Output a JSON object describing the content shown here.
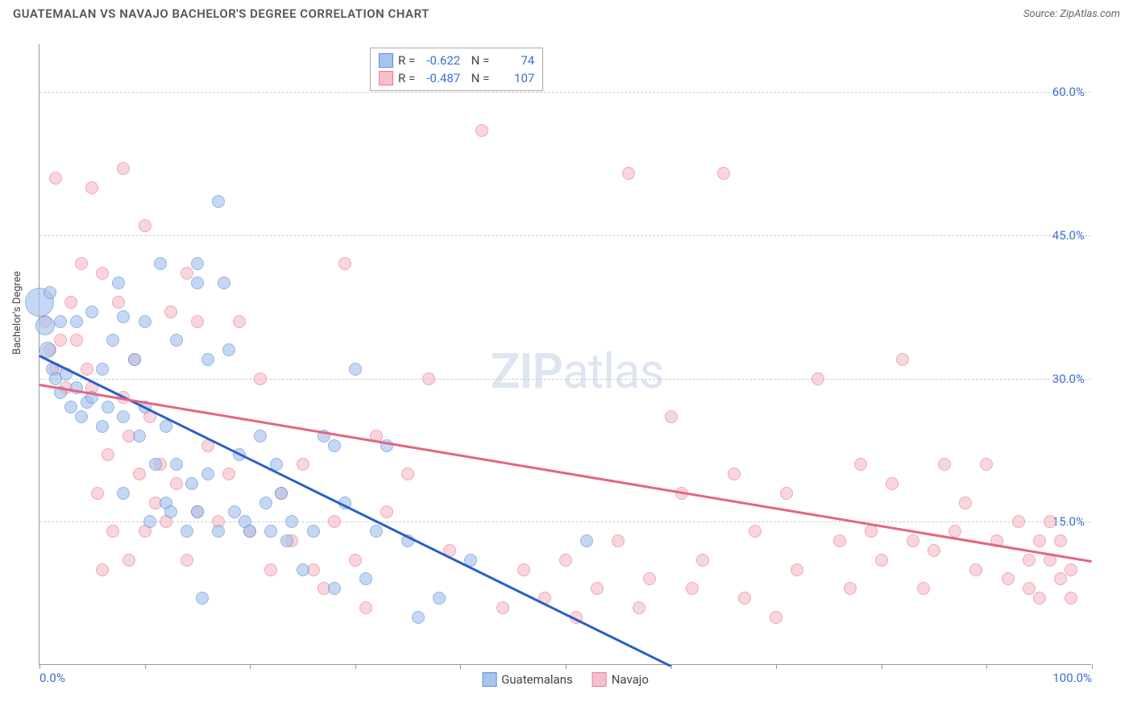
{
  "header": {
    "title": "GUATEMALAN VS NAVAJO BACHELOR'S DEGREE CORRELATION CHART",
    "source_label": "Source: ZipAtlas.com"
  },
  "chart": {
    "type": "scatter",
    "ylabel": "Bachelor's Degree",
    "watermark": "ZIPatlas",
    "xlim": [
      0,
      100
    ],
    "ylim": [
      0,
      65
    ],
    "xtick_positions": [
      0,
      10,
      20,
      30,
      40,
      50,
      60,
      70,
      80,
      90,
      100
    ],
    "xtick_labels_shown": {
      "0": "0.0%",
      "100": "100.0%"
    },
    "ytick_positions": [
      15,
      30,
      45,
      60
    ],
    "ytick_labels": {
      "15": "15.0%",
      "30": "30.0%",
      "45": "45.0%",
      "60": "60.0%"
    },
    "grid_color": "#cccccc",
    "background_color": "#ffffff",
    "tick_label_color": "#3b6fd4",
    "tick_label_fontsize": 15,
    "axis_label_fontsize": 13,
    "point_radius": 8,
    "point_opacity_fill": 0.35,
    "point_opacity_stroke": 0.9,
    "series": [
      {
        "name": "Guatemalans",
        "color_fill": "#a7c4ed",
        "color_stroke": "#5b8fd6",
        "stats": {
          "R": "-0.622",
          "N": "74"
        },
        "trend": {
          "x1": 0,
          "y1": 32.5,
          "x2": 60,
          "y2": 0,
          "color": "#2a5fc9",
          "width": 2.5
        },
        "points": [
          [
            0,
            38,
            18
          ],
          [
            0.5,
            35.5,
            12
          ],
          [
            0.8,
            33,
            10
          ],
          [
            1,
            39,
            8
          ],
          [
            1.2,
            31,
            8
          ],
          [
            1.5,
            30,
            8
          ],
          [
            2,
            36,
            8
          ],
          [
            2,
            28.5,
            8
          ],
          [
            2.5,
            30.5,
            8
          ],
          [
            3,
            27,
            8
          ],
          [
            3.5,
            29,
            8
          ],
          [
            3.5,
            36,
            8
          ],
          [
            4,
            26,
            8
          ],
          [
            4.5,
            27.5,
            8
          ],
          [
            5,
            28,
            8
          ],
          [
            5,
            37,
            8
          ],
          [
            6,
            31,
            8
          ],
          [
            6,
            25,
            8
          ],
          [
            6.5,
            27,
            8
          ],
          [
            7,
            34,
            8
          ],
          [
            7.5,
            40,
            8
          ],
          [
            8,
            36.5,
            8
          ],
          [
            8,
            26,
            8
          ],
          [
            8,
            18,
            8
          ],
          [
            9,
            32,
            8
          ],
          [
            9.5,
            24,
            8
          ],
          [
            10,
            36,
            8
          ],
          [
            10,
            27,
            8
          ],
          [
            10.5,
            15,
            8
          ],
          [
            11,
            21,
            8
          ],
          [
            11.5,
            42,
            8
          ],
          [
            12,
            17,
            8
          ],
          [
            12,
            25,
            8
          ],
          [
            12.5,
            16,
            8
          ],
          [
            13,
            34,
            8
          ],
          [
            13,
            21,
            8
          ],
          [
            14,
            14,
            8
          ],
          [
            14.5,
            19,
            8
          ],
          [
            15,
            40,
            8
          ],
          [
            15,
            42,
            8
          ],
          [
            15,
            16,
            8
          ],
          [
            15.5,
            7,
            8
          ],
          [
            16,
            32,
            8
          ],
          [
            16,
            20,
            8
          ],
          [
            17,
            14,
            8
          ],
          [
            17,
            48.5,
            8
          ],
          [
            17.5,
            40,
            8
          ],
          [
            18,
            33,
            8
          ],
          [
            18.5,
            16,
            8
          ],
          [
            19,
            22,
            8
          ],
          [
            19.5,
            15,
            8
          ],
          [
            20,
            14,
            8
          ],
          [
            21,
            24,
            8
          ],
          [
            21.5,
            17,
            8
          ],
          [
            22,
            14,
            8
          ],
          [
            22.5,
            21,
            8
          ],
          [
            23,
            18,
            8
          ],
          [
            23.5,
            13,
            8
          ],
          [
            24,
            15,
            8
          ],
          [
            25,
            10,
            8
          ],
          [
            26,
            14,
            8
          ],
          [
            27,
            24,
            8
          ],
          [
            28,
            23,
            8
          ],
          [
            28,
            8,
            8
          ],
          [
            29,
            17,
            8
          ],
          [
            30,
            31,
            8
          ],
          [
            31,
            9,
            8
          ],
          [
            32,
            14,
            8
          ],
          [
            33,
            23,
            8
          ],
          [
            35,
            13,
            8
          ],
          [
            36,
            5,
            8
          ],
          [
            38,
            7,
            8
          ],
          [
            41,
            11,
            8
          ],
          [
            52,
            13,
            8
          ]
        ]
      },
      {
        "name": "Navajo",
        "color_fill": "#f6c0ca",
        "color_stroke": "#e77b95",
        "stats": {
          "R": "-0.487",
          "N": "107"
        },
        "trend": {
          "x1": 0,
          "y1": 29.5,
          "x2": 100,
          "y2": 11,
          "color": "#e5657f",
          "width": 2.5
        },
        "points": [
          [
            0.5,
            36,
            8
          ],
          [
            1,
            33,
            8
          ],
          [
            1.5,
            31,
            8
          ],
          [
            1.5,
            51,
            8
          ],
          [
            2,
            34,
            8
          ],
          [
            2.5,
            29,
            8
          ],
          [
            3,
            38,
            8
          ],
          [
            3.5,
            34,
            8
          ],
          [
            4,
            42,
            8
          ],
          [
            4.5,
            31,
            8
          ],
          [
            5,
            50,
            8
          ],
          [
            5,
            29,
            8
          ],
          [
            5.5,
            18,
            8
          ],
          [
            6,
            41,
            8
          ],
          [
            6,
            10,
            8
          ],
          [
            6.5,
            22,
            8
          ],
          [
            7,
            14,
            8
          ],
          [
            7.5,
            38,
            8
          ],
          [
            8,
            52,
            8
          ],
          [
            8,
            28,
            8
          ],
          [
            8.5,
            24,
            8
          ],
          [
            8.5,
            11,
            8
          ],
          [
            9,
            32,
            8
          ],
          [
            9.5,
            20,
            8
          ],
          [
            10,
            14,
            8
          ],
          [
            10,
            46,
            8
          ],
          [
            10.5,
            26,
            8
          ],
          [
            11,
            17,
            8
          ],
          [
            11.5,
            21,
            8
          ],
          [
            12,
            15,
            8
          ],
          [
            12.5,
            37,
            8
          ],
          [
            13,
            19,
            8
          ],
          [
            14,
            41,
            8
          ],
          [
            14,
            11,
            8
          ],
          [
            15,
            36,
            8
          ],
          [
            15,
            16,
            8
          ],
          [
            16,
            23,
            8
          ],
          [
            17,
            15,
            8
          ],
          [
            18,
            20,
            8
          ],
          [
            19,
            36,
            8
          ],
          [
            20,
            14,
            8
          ],
          [
            21,
            30,
            8
          ],
          [
            22,
            10,
            8
          ],
          [
            23,
            18,
            8
          ],
          [
            24,
            13,
            8
          ],
          [
            25,
            21,
            8
          ],
          [
            26,
            10,
            8
          ],
          [
            27,
            8,
            8
          ],
          [
            28,
            15,
            8
          ],
          [
            29,
            42,
            8
          ],
          [
            30,
            11,
            8
          ],
          [
            31,
            6,
            8
          ],
          [
            32,
            24,
            8
          ],
          [
            33,
            16,
            8
          ],
          [
            35,
            20,
            8
          ],
          [
            37,
            30,
            8
          ],
          [
            39,
            12,
            8
          ],
          [
            42,
            56,
            8
          ],
          [
            44,
            6,
            8
          ],
          [
            46,
            10,
            8
          ],
          [
            48,
            7,
            8
          ],
          [
            50,
            11,
            8
          ],
          [
            51,
            5,
            8
          ],
          [
            53,
            8,
            8
          ],
          [
            55,
            13,
            8
          ],
          [
            56,
            51.5,
            8
          ],
          [
            57,
            6,
            8
          ],
          [
            58,
            9,
            8
          ],
          [
            60,
            26,
            8
          ],
          [
            61,
            18,
            8
          ],
          [
            62,
            8,
            8
          ],
          [
            63,
            11,
            8
          ],
          [
            65,
            51.5,
            8
          ],
          [
            66,
            20,
            8
          ],
          [
            67,
            7,
            8
          ],
          [
            68,
            14,
            8
          ],
          [
            70,
            5,
            8
          ],
          [
            71,
            18,
            8
          ],
          [
            72,
            10,
            8
          ],
          [
            74,
            30,
            8
          ],
          [
            76,
            13,
            8
          ],
          [
            77,
            8,
            8
          ],
          [
            78,
            21,
            8
          ],
          [
            79,
            14,
            8
          ],
          [
            80,
            11,
            8
          ],
          [
            81,
            19,
            8
          ],
          [
            82,
            32,
            8
          ],
          [
            83,
            13,
            8
          ],
          [
            84,
            8,
            8
          ],
          [
            85,
            12,
            8
          ],
          [
            86,
            21,
            8
          ],
          [
            87,
            14,
            8
          ],
          [
            88,
            17,
            8
          ],
          [
            89,
            10,
            8
          ],
          [
            90,
            21,
            8
          ],
          [
            91,
            13,
            8
          ],
          [
            92,
            9,
            8
          ],
          [
            93,
            15,
            8
          ],
          [
            94,
            11,
            8
          ],
          [
            94,
            8,
            8
          ],
          [
            95,
            13,
            8
          ],
          [
            95,
            7,
            8
          ],
          [
            96,
            11,
            8
          ],
          [
            96,
            15,
            8
          ],
          [
            97,
            9,
            8
          ],
          [
            97,
            13,
            8
          ],
          [
            98,
            10,
            8
          ],
          [
            98,
            7,
            8
          ]
        ]
      }
    ],
    "bottom_legend": {
      "items": [
        {
          "swatch_fill": "#a7c4ed",
          "swatch_stroke": "#5b8fd6",
          "label": "Guatemalans"
        },
        {
          "swatch_fill": "#f6c0ca",
          "swatch_stroke": "#e77b95",
          "label": "Navajo"
        }
      ]
    }
  }
}
